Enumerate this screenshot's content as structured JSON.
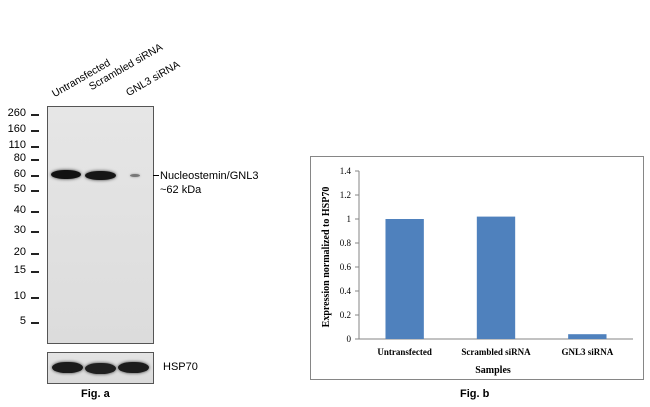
{
  "fig_a": {
    "lanes": [
      "Untransfected",
      "Scrambled siRNA",
      "GNL3 siRNA"
    ],
    "markers": [
      "260",
      "160",
      "110",
      "80",
      "60",
      "50",
      "40",
      "30",
      "20",
      "15",
      "10",
      "5"
    ],
    "annotation_line1": "Nucleostemin/GNL3",
    "annotation_line2": "~62 kDa",
    "loading_control": "HSP70",
    "caption": "Fig. a"
  },
  "fig_b": {
    "caption": "Fig. b"
  },
  "chart_data": {
    "type": "bar",
    "categories": [
      "Untransfected",
      "Scrambled siRNA",
      "GNL3 siRNA"
    ],
    "values": [
      1.0,
      1.02,
      0.04
    ],
    "xlabel": "Samples",
    "ylabel": "Expression normalized to HSP70",
    "ylim": [
      0,
      1.4
    ],
    "yticks": [
      "0",
      "0.2",
      "0.4",
      "0.6",
      "0.8",
      "1",
      "1.2",
      "1.4"
    ],
    "grid": false,
    "legend": "none",
    "bar_color": "#4f81bd"
  }
}
